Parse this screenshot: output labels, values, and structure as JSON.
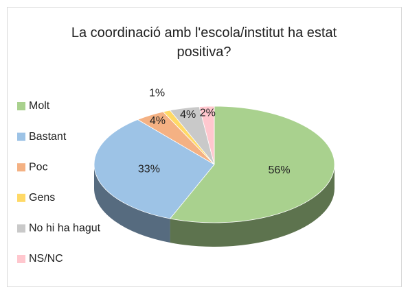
{
  "chart_data": {
    "type": "pie3d",
    "title": "La coordinació amb l'escola/institut ha estat positiva?",
    "categories": [
      "Molt",
      "Bastant",
      "Poc",
      "Gens",
      "No hi ha hagut",
      "NS/NC"
    ],
    "values": [
      56,
      33,
      4,
      1,
      4,
      2
    ],
    "value_labels": [
      "56%",
      "33%",
      "4%",
      "1%",
      "4%",
      "2%"
    ],
    "colors": [
      "#a9d18e",
      "#9dc3e6",
      "#f4b183",
      "#ffd966",
      "#c9c9c9",
      "#ffc7ce"
    ],
    "legend": "left"
  }
}
